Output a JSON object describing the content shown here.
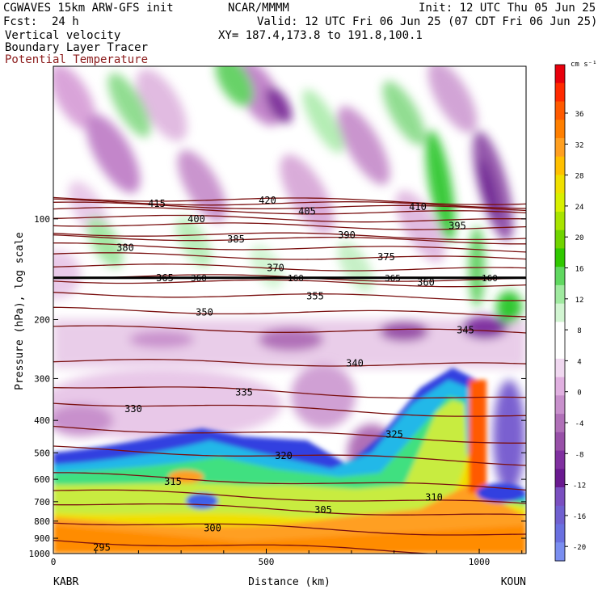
{
  "header": {
    "model": "CGWAVES 15km ARW-GFS init",
    "center": "NCAR/MMMM",
    "init": "Init: 12 UTC Thu 05 Jun 25",
    "fcst_label": "Fcst:",
    "fcst_value": "24 h",
    "valid": "Valid: 12 UTC Fri 06 Jun 25 (07 CDT Fri 06 Jun 25)",
    "xy": "XY= 187.4,173.8 to 191.8,100.1",
    "field1": "Vertical velocity",
    "field2": "Boundary Layer Tracer",
    "field3": "Potential Temperature"
  },
  "chart_data": {
    "type": "heatmap",
    "title": "",
    "xlabel": "Distance (km)",
    "ylabel": "Pressure (hPa), log scale",
    "x_ticks": [
      "0",
      "500",
      "1000"
    ],
    "y_ticks": [
      {
        "label": "100",
        "p": 100
      },
      {
        "label": "200",
        "p": 200
      },
      {
        "label": "300",
        "p": 300
      },
      {
        "label": "400",
        "p": 400
      },
      {
        "label": "500",
        "p": 500
      },
      {
        "label": "600",
        "p": 600
      },
      {
        "label": "700",
        "p": 700
      },
      {
        "label": "800",
        "p": 800
      },
      {
        "label": "900",
        "p": 900
      },
      {
        "label": "1000",
        "p": 1000
      }
    ],
    "xlim": [
      0,
      1110
    ],
    "ylim": [
      1000,
      35
    ],
    "y_scale": "log",
    "left_endpoint": "KABR",
    "right_endpoint": "KOUN",
    "colorbar": {
      "units": "cm s⁻¹",
      "labels": [
        "36",
        "32",
        "28",
        "24",
        "20",
        "16",
        "12",
        "8",
        "4",
        "0",
        "-4",
        "-8",
        "-12",
        "-16",
        "-20"
      ],
      "colors": [
        "#e8000c",
        "#ff2a00",
        "#ff5a00",
        "#ff7f00",
        "#ff9f20",
        "#ffc000",
        "#f0e000",
        "#d8f000",
        "#a8e400",
        "#70d400",
        "#30c800",
        "#60d860",
        "#a0eaa0",
        "#d2f5d2",
        "#ffffff",
        "#ffffff",
        "#f0d8f0",
        "#e0b0e0",
        "#c890cc",
        "#b070b8",
        "#9850a8",
        "#8030a0",
        "#6a1a90",
        "#7a4fc0",
        "#7060d0",
        "#6a70e0",
        "#7a8ef0"
      ]
    },
    "theta_contours": [
      {
        "label": "295",
        "p": 960
      },
      {
        "label": "300",
        "p": 840
      },
      {
        "label": "305",
        "p": 740
      },
      {
        "label": "310",
        "p": 680
      },
      {
        "label": "315",
        "p": 610
      },
      {
        "label": "320",
        "p": 510
      },
      {
        "label": "325",
        "p": 440
      },
      {
        "label": "330",
        "p": 370
      },
      {
        "label": "335",
        "p": 330
      },
      {
        "label": "340",
        "p": 270
      },
      {
        "label": "345",
        "p": 215
      },
      {
        "label": "350",
        "p": 190
      },
      {
        "label": "355",
        "p": 170
      },
      {
        "label": "360",
        "p": 155
      },
      {
        "label": "365",
        "p": 150
      },
      {
        "label": "370",
        "p": 140
      },
      {
        "label": "375",
        "p": 130
      },
      {
        "label": "380",
        "p": 122
      },
      {
        "label": "385",
        "p": 115
      },
      {
        "label": "390",
        "p": 112
      },
      {
        "label": "395",
        "p": 105
      },
      {
        "label": "400",
        "p": 100
      },
      {
        "label": "405",
        "p": 95
      },
      {
        "label": "410",
        "p": 92
      },
      {
        "label": "415",
        "p": 90
      },
      {
        "label": "420",
        "p": 88
      }
    ],
    "tropopause_line": {
      "p": 150,
      "labels": [
        "360",
        "160",
        "365",
        "160"
      ]
    }
  }
}
